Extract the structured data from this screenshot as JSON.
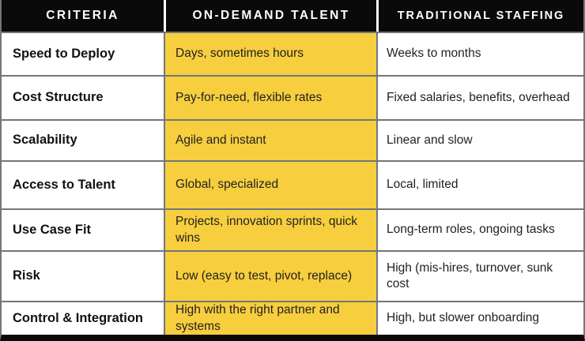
{
  "table": {
    "headers": {
      "criteria": "CRITERIA",
      "on_demand": "ON-DEMAND TALENT",
      "traditional": "TRADITIONAL STAFFING"
    },
    "rows": [
      {
        "criteria": "Speed to Deploy",
        "on_demand": "Days, sometimes hours",
        "traditional": "Weeks to months"
      },
      {
        "criteria": "Cost Structure",
        "on_demand": "Pay-for-need, flexible rates",
        "traditional": "Fixed salaries, benefits, overhead"
      },
      {
        "criteria": "Scalability",
        "on_demand": "Agile and instant",
        "traditional": "Linear and slow"
      },
      {
        "criteria": "Access to Talent",
        "on_demand": "Global, specialized",
        "traditional": "Local, limited"
      },
      {
        "criteria": "Use Case Fit",
        "on_demand": "Projects, innovation sprints, quick wins",
        "traditional": "Long-term roles, ongoing tasks"
      },
      {
        "criteria": "Risk",
        "on_demand": "Low (easy to test, pivot, replace)",
        "traditional": "High (mis-hires, turnover, sunk cost"
      },
      {
        "criteria": "Control & Integration",
        "on_demand": "High with the right partner and systems",
        "traditional": "High, but slower onboarding"
      }
    ]
  },
  "colors": {
    "accent_yellow": "#f7ce3e",
    "header_bg": "#0a0a0a",
    "header_text": "#ffffff",
    "border_gray": "#71767c"
  }
}
